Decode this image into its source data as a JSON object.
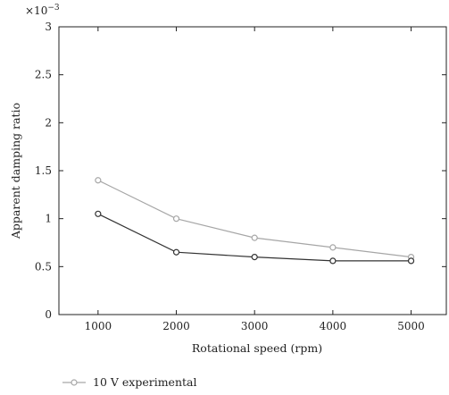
{
  "chart_data": {
    "type": "line",
    "xlabel": "Rotational speed (rpm)",
    "ylabel": "Apparent damping ratio",
    "y_exponent_label": "×10",
    "y_exponent_power": "−3",
    "x": [
      1000,
      2000,
      3000,
      4000,
      5000
    ],
    "xlim": [
      500,
      5450
    ],
    "ylim": [
      0,
      3
    ],
    "x_ticks": [
      "1000",
      "2000",
      "3000",
      "4000",
      "5000"
    ],
    "y_ticks": [
      "0",
      "0.5",
      "1",
      "1.5",
      "2",
      "2.5",
      "3"
    ],
    "grid": false,
    "legend_position": "bottom-left",
    "series": [
      {
        "name": "10 V experimental",
        "values": [
          1.4,
          1.0,
          0.8,
          0.7,
          0.6
        ],
        "color": "#a6a6a6"
      },
      {
        "values": [
          1.05,
          0.65,
          0.6,
          0.56,
          0.56
        ],
        "color": "#333333"
      }
    ]
  }
}
